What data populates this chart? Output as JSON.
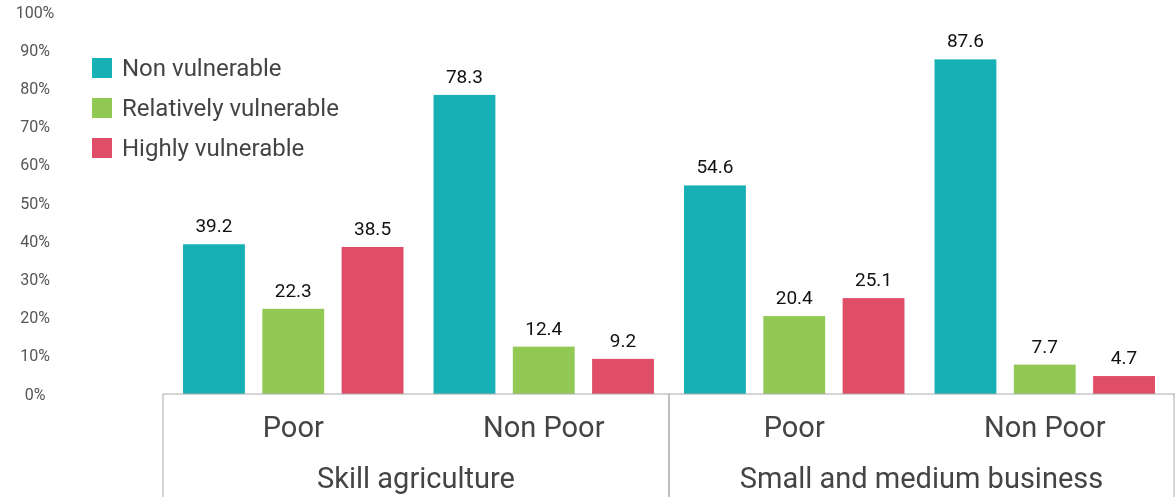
{
  "chart_data": {
    "type": "bar",
    "categories": [
      "Poor",
      "Non Poor",
      "Poor",
      "Non Poor"
    ],
    "series": [
      {
        "name": "Non vulnerable",
        "color": "#16b0b5",
        "values": [
          39.2,
          78.3,
          54.6,
          87.6
        ]
      },
      {
        "name": "Relatively vulnerable",
        "color": "#92c954",
        "values": [
          22.3,
          12.4,
          20.4,
          7.7
        ]
      },
      {
        "name": "Highly vulnerable",
        "color": "#e04d67",
        "values": [
          38.5,
          9.2,
          25.1,
          4.7
        ]
      }
    ],
    "ylim": [
      0,
      100
    ],
    "yticks": [
      {
        "value": 0,
        "label": "0%"
      },
      {
        "value": 10,
        "label": "10%"
      },
      {
        "value": 20,
        "label": "20%"
      },
      {
        "value": 30,
        "label": "30%"
      },
      {
        "value": 40,
        "label": "40%"
      },
      {
        "value": 50,
        "label": "50%"
      },
      {
        "value": 60,
        "label": "60%"
      },
      {
        "value": 70,
        "label": "70%"
      },
      {
        "value": 80,
        "label": "80%"
      },
      {
        "value": 90,
        "label": "90%"
      },
      {
        "value": 100,
        "label": "100%"
      }
    ],
    "annotations": [
      "Skill agriculture",
      "Small and medium business"
    ],
    "data_labels": true,
    "legend": "top left",
    "grid": false
  }
}
